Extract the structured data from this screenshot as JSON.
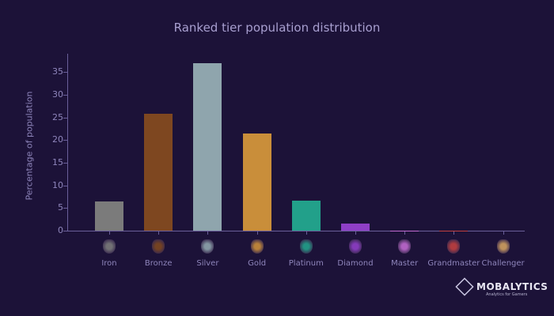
{
  "chart_data": {
    "type": "bar",
    "title": "Ranked tier population distribution",
    "xlabel": "",
    "ylabel": "Percentage of population",
    "ylim": [
      0,
      38
    ],
    "yticks": [
      0,
      5,
      10,
      15,
      20,
      25,
      30,
      35
    ],
    "grid": false,
    "categories": [
      "Iron",
      "Bronze",
      "Silver",
      "Gold",
      "Platinum",
      "Diamond",
      "Master",
      "Grandmaster",
      "Challenger"
    ],
    "values": [
      6.5,
      25.8,
      36.9,
      21.5,
      6.7,
      1.6,
      0.03,
      0.02,
      0.01
    ],
    "colors": [
      "#7b7b7b",
      "#7e4720",
      "#8fa5ad",
      "#c98e3a",
      "#22a08a",
      "#8f3fc7",
      "#c06ad0",
      "#c04040",
      "#d0a060"
    ]
  },
  "branding": {
    "name": "MOBALYTICS",
    "tagline": "Analytics for Gamers"
  }
}
